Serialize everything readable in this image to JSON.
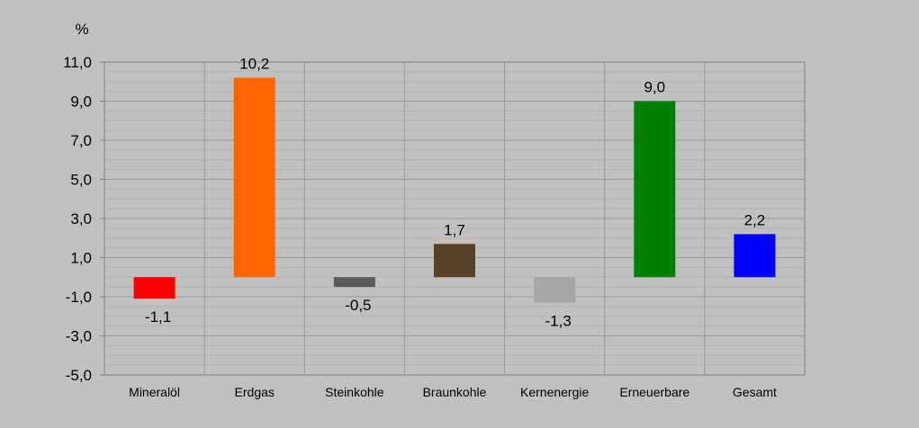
{
  "chart_data": {
    "type": "bar",
    "unit": "%",
    "categories": [
      "Mineralöl",
      "Erdgas",
      "Steinkohle",
      "Braunkohle",
      "Kernenergie",
      "Erneuerbare",
      "Gesamt"
    ],
    "values": [
      -1.1,
      10.2,
      -0.5,
      1.7,
      -1.3,
      9.0,
      2.2
    ],
    "value_labels": [
      "-1,1",
      "10,2",
      "-0,5",
      "1,7",
      "-1,3",
      "9,0",
      "2,2"
    ],
    "colors": [
      "#ff0000",
      "#ff6600",
      "#5a5a5a",
      "#574226",
      "#a6a6a6",
      "#008000",
      "#0000ff"
    ],
    "ylim": [
      -5.0,
      11.0
    ],
    "yticks": [
      11.0,
      9.0,
      7.0,
      5.0,
      3.0,
      1.0,
      -1.0,
      -3.0,
      -5.0
    ],
    "ytick_labels": [
      "11,0",
      "9,0",
      "7,0",
      "5,0",
      "3,0",
      "1,0",
      "-1,0",
      "-3,0",
      "-5,0"
    ],
    "grid": true,
    "minor_grid_step": 0.5,
    "plot_background": "#c0c0c0",
    "grid_color": "#999999",
    "minor_grid_color": "#b2b2b2",
    "axis_color": "#808080"
  }
}
